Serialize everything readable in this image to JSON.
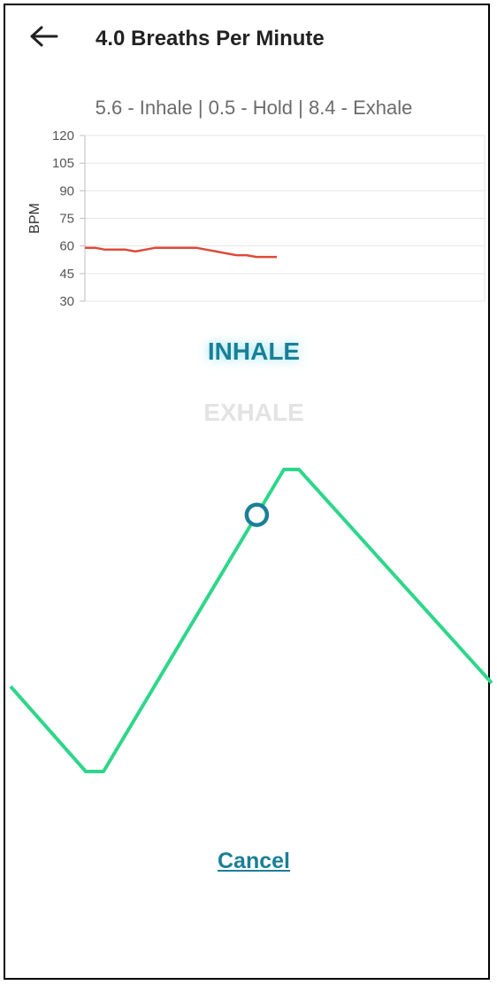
{
  "header": {
    "title": "4.0 Breaths Per Minute",
    "back_icon": "arrow-left-icon"
  },
  "pattern": "5.6 - Inhale | 0.5 - Hold | 8.4 - Exhale",
  "chart_data": {
    "type": "line",
    "ylabel": "BPM",
    "ylim": [
      30,
      120
    ],
    "yticks": [
      120,
      105,
      90,
      75,
      60,
      45,
      30
    ],
    "grid": true,
    "series": [
      {
        "color": "#dd4b39",
        "values": [
          59,
          59,
          58,
          58,
          58,
          57,
          58,
          59,
          59,
          59,
          59,
          59,
          58,
          57,
          56,
          55,
          55,
          54,
          54,
          54
        ]
      }
    ]
  },
  "phases": {
    "active": "INHALE",
    "next": "EXHALE",
    "active_color": "#1a7f97",
    "inactive_color": "#e3e3e3"
  },
  "breath_wave": {
    "color": "#2fd68a",
    "marker_color": "#1a7f97",
    "marker_progress": 0.85
  },
  "cancel_label": "Cancel"
}
